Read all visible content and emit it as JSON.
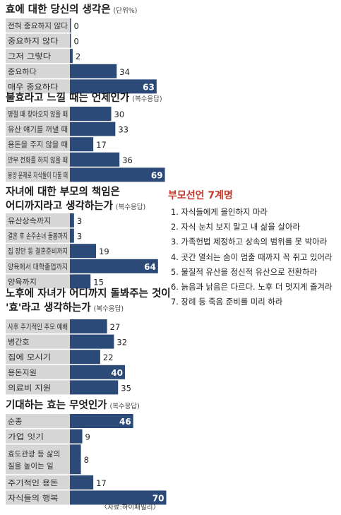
{
  "panels": [
    {
      "title": "효에 대한 당신의 생각은",
      "subtitle": "(단위%)",
      "chart_data": {
        "type": "bar",
        "orientation": "horizontal",
        "categories": [
          "전혀 중요하지 않다",
          "중요하지 않다",
          "그저 그렇다",
          "중요하다",
          "매우 중요하다"
        ],
        "values": [
          0,
          0,
          2,
          34,
          63
        ],
        "unit": "%"
      }
    },
    {
      "title": "불효라고 느낄 때는 언제인가",
      "subtitle": "(복수응답)",
      "chart_data": {
        "type": "bar",
        "orientation": "horizontal",
        "categories": [
          "명절 때 찾아오지 않을 때",
          "유산 얘기를 꺼낼 때",
          "용돈을 주지 않을 때",
          "안부 전화를 하지 않을 때",
          "봉양 문제로 자식들이 다툴 때"
        ],
        "values": [
          30,
          33,
          17,
          36,
          69
        ],
        "unit": "%"
      }
    },
    {
      "title": "자녀에 대한 부모의 책임은",
      "title2": "어디까지라고 생각하는가",
      "subtitle": "(복수응답)",
      "chart_data": {
        "type": "bar",
        "orientation": "horizontal",
        "categories": [
          "유산상속까지",
          "결혼 후 손주손녀 돌봄까지",
          "집 장만 등 결혼준비까지",
          "양육에서 대학졸업까지",
          "양육까지"
        ],
        "values": [
          3,
          3,
          19,
          64,
          15
        ],
        "unit": "%"
      }
    },
    {
      "title": "노후에 자녀가 어디까지 돌봐주는 것이",
      "title2": "'효'라고 생각하는가",
      "subtitle": "(복수응답)",
      "chart_data": {
        "type": "bar",
        "orientation": "horizontal",
        "categories": [
          "사후 주기적인 추모 예배",
          "병간호",
          "집에 모시기",
          "용돈지원",
          "의료비 지원"
        ],
        "values": [
          27,
          32,
          22,
          40,
          35
        ],
        "unit": "%"
      }
    },
    {
      "title": "기대하는 효는 무엇인가",
      "subtitle": "(복수응답)",
      "chart_data": {
        "type": "bar",
        "orientation": "horizontal",
        "categories": [
          "순종",
          "가업 잇기",
          "효도관광 등 삶의 질을 높이는 일",
          "주기적인 용돈",
          "자식들의 행복"
        ],
        "values": [
          46,
          9,
          8,
          17,
          70
        ],
        "unit": "%"
      }
    }
  ],
  "source": "〈자료:하이패밀리〉",
  "sidebar": {
    "title": "부모선언 7계명",
    "items": [
      "1. 자식들에게 올인하지 마라",
      "2. 자식 눈치 보지 말고 내 삶을 살아라",
      "3. 가족헌법 제정하고 상속의 범위를 못 박아라",
      "4. 곳간 열쇠는 숨이 멈출 때까지 꼭 쥐고 있어라",
      "5. 물질적 유산을 정신적 유산으로 전환하라",
      "6. 늙음과 낡음은 다르다. 노후 더 멋지게 즐겨라",
      "7. 장례 등 죽음 준비를 미리 하라"
    ]
  },
  "colors": {
    "bar": "#2b4a78",
    "label_bg": "#d6d6d6",
    "sidebar_title": "#c0392b"
  }
}
